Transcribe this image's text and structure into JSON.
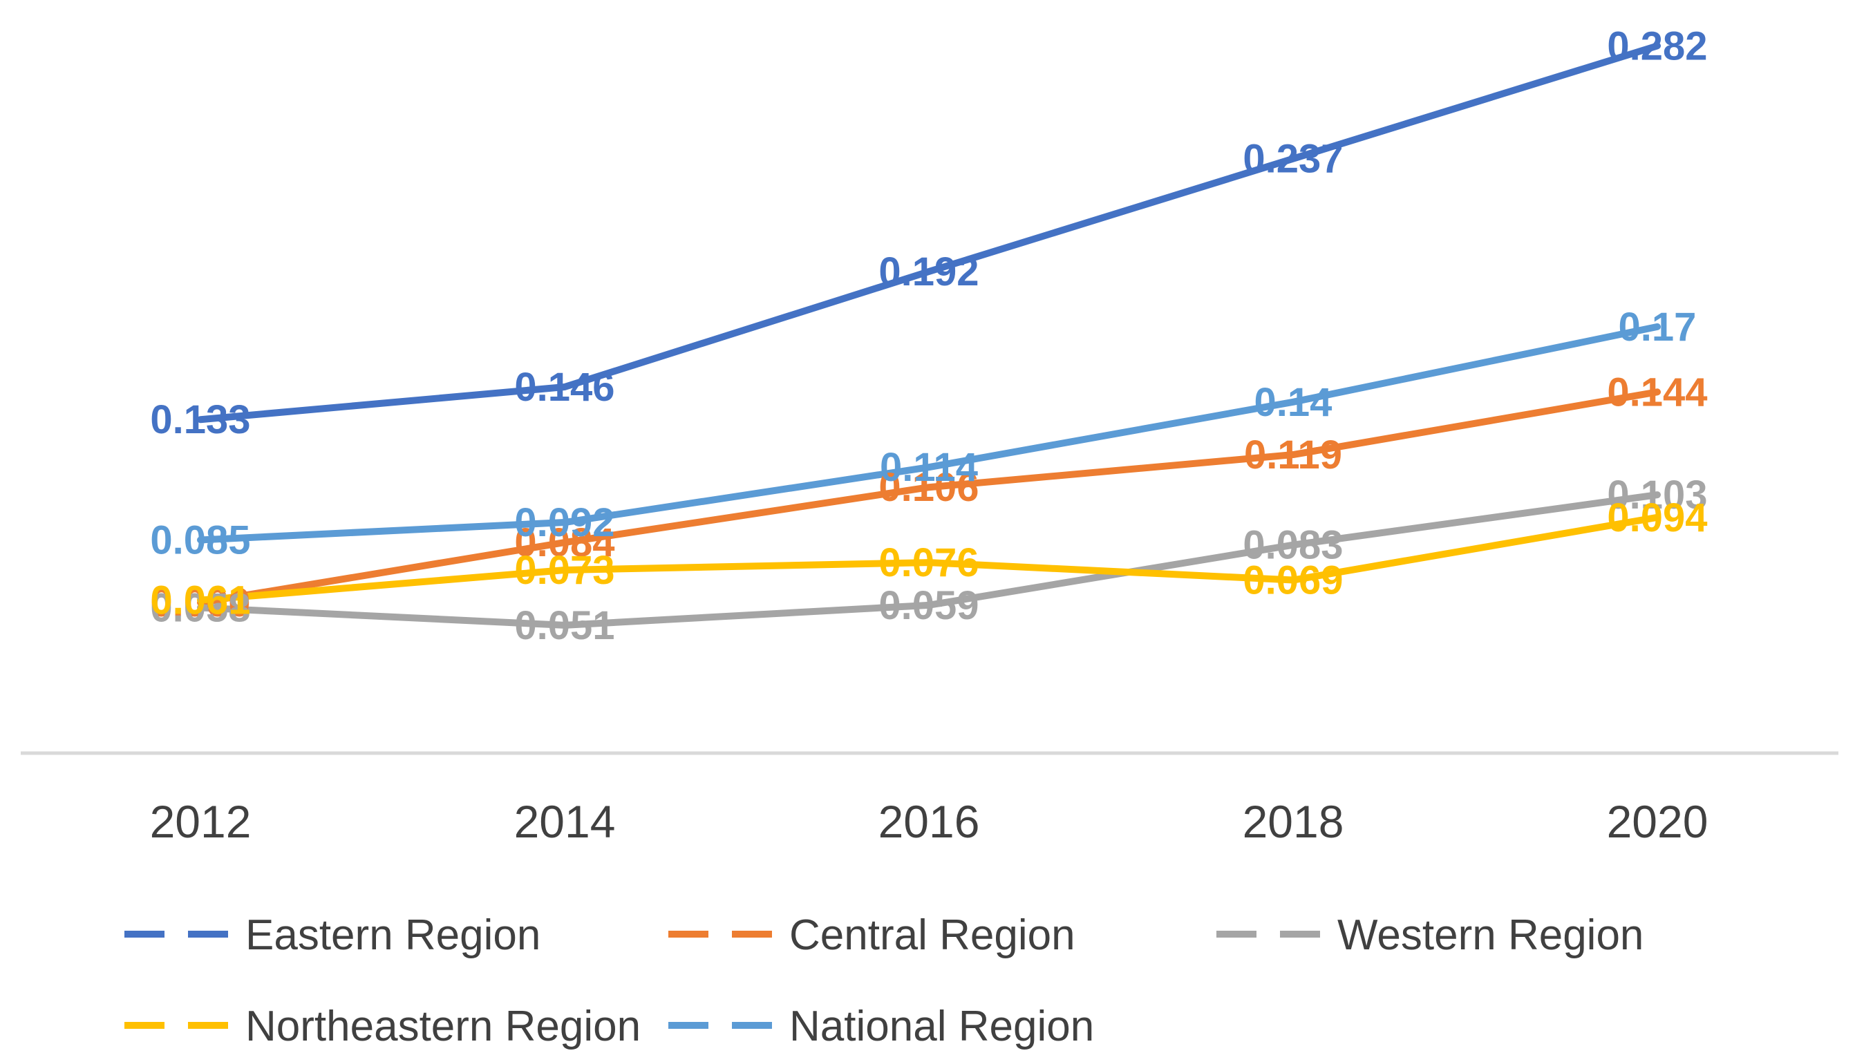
{
  "chart_data": {
    "type": "line",
    "title": "",
    "xlabel": "",
    "ylabel": "",
    "categories": [
      "2012",
      "2014",
      "2016",
      "2018",
      "2020"
    ],
    "ylim": [
      0,
      0.3
    ],
    "grid": false,
    "legend_position": "bottom",
    "series": [
      {
        "name": "Eastern Region",
        "color": "#4472C4",
        "values": [
          0.133,
          0.146,
          0.192,
          0.237,
          0.282
        ],
        "labels": [
          "0.133",
          "0.146",
          "0.192",
          "0.237",
          "0.282"
        ]
      },
      {
        "name": "Central Region",
        "color": "#ED7D31",
        "values": [
          0.06,
          0.084,
          0.106,
          0.119,
          0.144
        ],
        "labels": [
          "0.060",
          "0.084",
          "0.106",
          "0.119",
          "0.144"
        ]
      },
      {
        "name": "Western Region",
        "color": "#A5A5A5",
        "values": [
          0.058,
          0.051,
          0.059,
          0.083,
          0.103
        ],
        "labels": [
          "0.058",
          "0.051",
          "0.059",
          "0.083",
          "0.103"
        ]
      },
      {
        "name": "Northeastern Region",
        "color": "#FFC000",
        "values": [
          0.061,
          0.073,
          0.076,
          0.069,
          0.094
        ],
        "labels": [
          "0.061",
          "0.073",
          "0.076",
          "0.069",
          "0.094"
        ]
      },
      {
        "name": "National Region",
        "color": "#5B9BD5",
        "values": [
          0.085,
          0.092,
          0.114,
          0.14,
          0.17
        ],
        "labels": [
          "0.085",
          "0.092",
          "0.114",
          "0.14",
          "0.17"
        ]
      }
    ]
  }
}
